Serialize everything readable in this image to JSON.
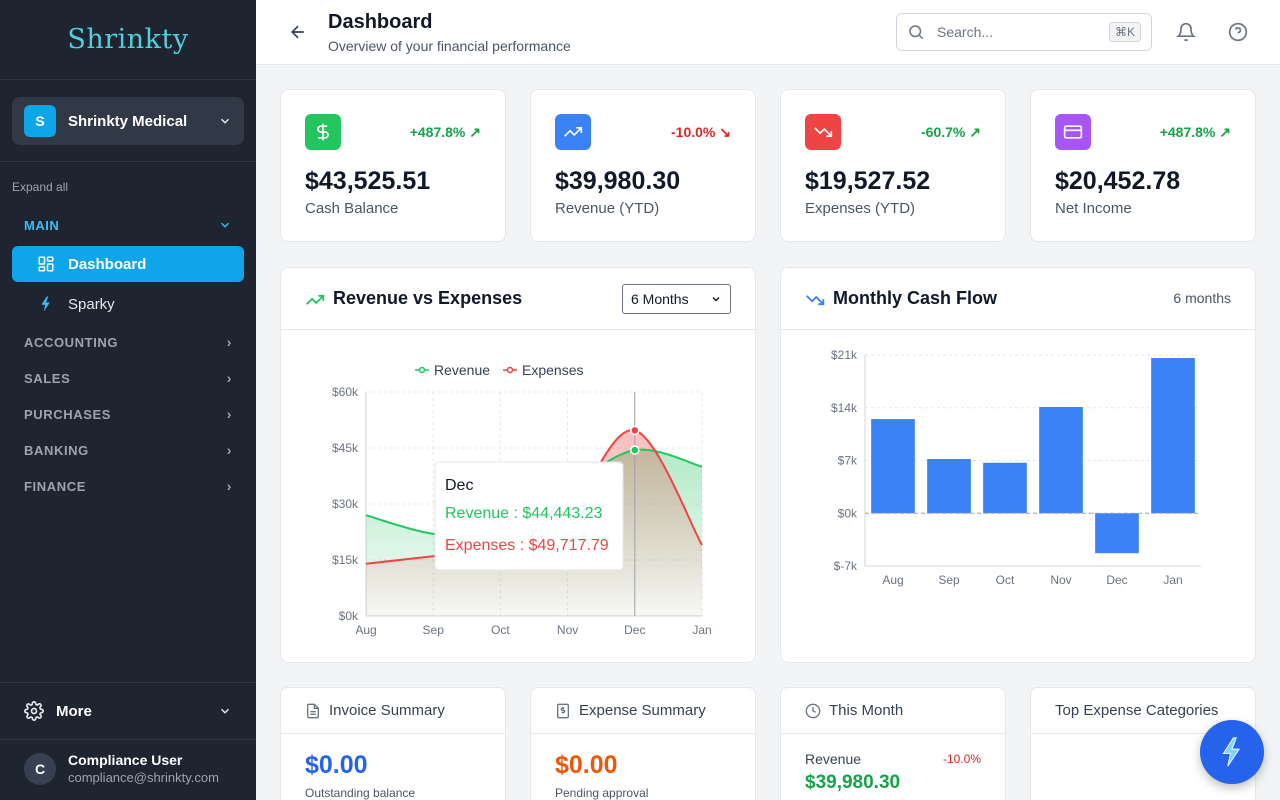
{
  "app": {
    "logo": "Shrinkty",
    "org": {
      "badge": "S",
      "name": "Shrinkty Medical"
    },
    "expand_all": "Expand all",
    "sections": {
      "main": "MAIN",
      "accounting": "ACCOUNTING",
      "sales": "SALES",
      "purchases": "PURCHASES",
      "banking": "BANKING",
      "finance": "FINANCE"
    },
    "nav": {
      "dashboard": "Dashboard",
      "sparky": "Sparky"
    },
    "more": "More",
    "user": {
      "initial": "C",
      "name": "Compliance User",
      "email": "compliance@shrinkty.com"
    }
  },
  "header": {
    "title": "Dashboard",
    "subtitle": "Overview of your financial performance",
    "search_placeholder": "Search...",
    "shortcut": "⌘K"
  },
  "kpis": [
    {
      "value": "$43,525.51",
      "label": "Cash Balance",
      "change": "+487.8%",
      "trend": "up",
      "color": "#22c55e",
      "icon": "dollar-icon"
    },
    {
      "value": "$39,980.30",
      "label": "Revenue (YTD)",
      "change": "-10.0%",
      "trend": "down",
      "color": "#3b82f6",
      "icon": "trending-up-icon"
    },
    {
      "value": "$19,527.52",
      "label": "Expenses (YTD)",
      "change": "-60.7%",
      "trend": "up",
      "color": "#ef4444",
      "icon": "trending-down-icon"
    },
    {
      "value": "$20,452.78",
      "label": "Net Income",
      "change": "+487.8%",
      "trend": "up",
      "color": "#a855f7",
      "icon": "credit-card-icon"
    }
  ],
  "rev_exp": {
    "title": "Revenue vs Expenses",
    "period": "6 Months",
    "tooltip": {
      "month": "Dec",
      "revenue": "Revenue : $44,443.23",
      "expenses": "Expenses : $49,717.79"
    }
  },
  "cashflow": {
    "title": "Monthly Cash Flow",
    "period": "6 months"
  },
  "chart_data": [
    {
      "type": "area",
      "x": [
        "Aug",
        "Sep",
        "Oct",
        "Nov",
        "Dec",
        "Jan"
      ],
      "series": [
        {
          "name": "Revenue",
          "values": [
            27000,
            22000,
            22000,
            34000,
            44443.23,
            40000
          ],
          "color": "#22c55e"
        },
        {
          "name": "Expenses",
          "values": [
            14000,
            16000,
            18000,
            28000,
            49717.79,
            19000
          ],
          "color": "#ef4444"
        }
      ],
      "yticks": [
        "$0k",
        "$15k",
        "$30k",
        "$45k",
        "$60k"
      ],
      "ylim": [
        0,
        60000
      ],
      "legend": "top-center",
      "grid": true
    },
    {
      "type": "bar",
      "categories": [
        "Aug",
        "Sep",
        "Oct",
        "Nov",
        "Dec",
        "Jan"
      ],
      "values": [
        12500,
        7200,
        6700,
        14100,
        -5300,
        20600
      ],
      "yticks": [
        "$-7k",
        "$0k",
        "$7k",
        "$14k",
        "$21k"
      ],
      "ylim": [
        -7000,
        21000
      ],
      "color": "#3b82f6",
      "grid": true
    }
  ],
  "summaries": {
    "invoice": {
      "title": "Invoice Summary",
      "value": "$0.00",
      "label": "Outstanding balance"
    },
    "expense": {
      "title": "Expense Summary",
      "value": "$0.00",
      "label": "Pending approval"
    },
    "month": {
      "title": "This Month",
      "revenue_label": "Revenue",
      "revenue_value": "$39,980.30",
      "change": "-10.0%"
    },
    "top": {
      "title": "Top Expense Categories"
    }
  }
}
